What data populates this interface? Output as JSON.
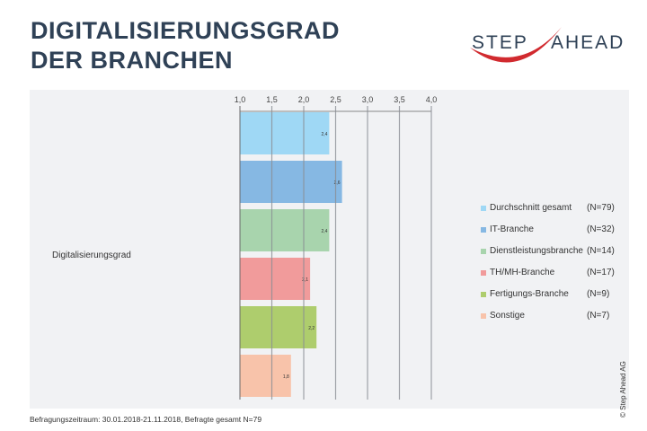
{
  "title_line1": "DIGITALISIERUNGSGRAD",
  "title_line2": "DER BRANCHEN",
  "logo": {
    "left": "STEP",
    "right": "AHEAD"
  },
  "footer": "Befragungszeitraum: 30.01.2018-21.11.2018, Befragte gesamt N=79",
  "copyright": "© Step Ahead AG",
  "chart_data": {
    "type": "bar",
    "orientation": "horizontal",
    "category": "Digitalisierungsgrad",
    "xlim": [
      1.0,
      4.0
    ],
    "ticks": [
      "1,0",
      "1,5",
      "2,0",
      "2,5",
      "3,0",
      "3,5",
      "4,0"
    ],
    "tick_values": [
      1.0,
      1.5,
      2.0,
      2.5,
      3.0,
      3.5,
      4.0
    ],
    "legend_position": "right",
    "series": [
      {
        "name": "Durchschnitt gesamt",
        "n": "(N=79)",
        "value": 2.4,
        "label": "2,4",
        "color": "#9fd8f5"
      },
      {
        "name": "IT-Branche",
        "n": "(N=32)",
        "value": 2.6,
        "label": "2,6",
        "color": "#86b8e3"
      },
      {
        "name": "Dienstleistungsbranche",
        "n": "(N=14)",
        "value": 2.4,
        "label": "2,4",
        "color": "#a8d4ad"
      },
      {
        "name": "TH/MH-Branche",
        "n": "(N=17)",
        "value": 2.1,
        "label": "2,1",
        "color": "#f19b9b"
      },
      {
        "name": "Fertigungs-Branche",
        "n": "(N=9)",
        "value": 2.2,
        "label": "2,2",
        "color": "#aecd6d"
      },
      {
        "name": "Sonstige",
        "n": "(N=7)",
        "value": 1.8,
        "label": "1,8",
        "color": "#f8c3aa"
      }
    ]
  }
}
